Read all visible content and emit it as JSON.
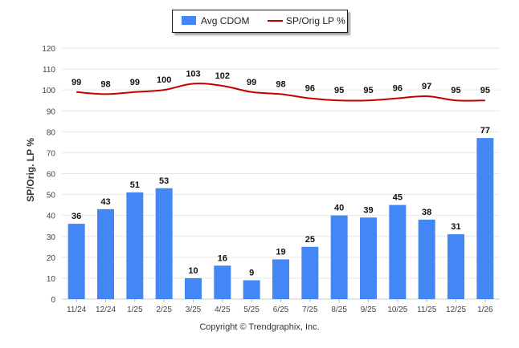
{
  "chart_data": {
    "type": "bar",
    "categories": [
      "11/24",
      "12/24",
      "1/25",
      "2/25",
      "3/25",
      "4/25",
      "5/25",
      "6/25",
      "7/25",
      "8/25",
      "9/25",
      "10/25",
      "11/25",
      "12/25",
      "1/26"
    ],
    "series": [
      {
        "name": "Avg CDOM",
        "type": "bar",
        "color": "#4287f5",
        "values": [
          36,
          43,
          51,
          53,
          10,
          16,
          9,
          19,
          25,
          40,
          39,
          45,
          38,
          31,
          77
        ]
      },
      {
        "name": "SP/Orig LP %",
        "type": "line",
        "color": "#c00000",
        "values": [
          99,
          98,
          99,
          100,
          103,
          102,
          99,
          98,
          96,
          95,
          95,
          96,
          97,
          95,
          95
        ]
      }
    ],
    "ylabel": "SP/Orig. LP %",
    "xlabel": "",
    "ylim": [
      0,
      120
    ],
    "yticks": [
      0,
      10,
      20,
      30,
      40,
      50,
      60,
      70,
      80,
      90,
      100,
      110,
      120
    ],
    "grid": true,
    "legend_position": "top-center"
  },
  "footer": {
    "copyright": "Copyright © Trendgraphix, Inc."
  },
  "icons": {
    "bar_swatch": "bar-swatch-icon",
    "line_swatch": "line-swatch-icon"
  }
}
